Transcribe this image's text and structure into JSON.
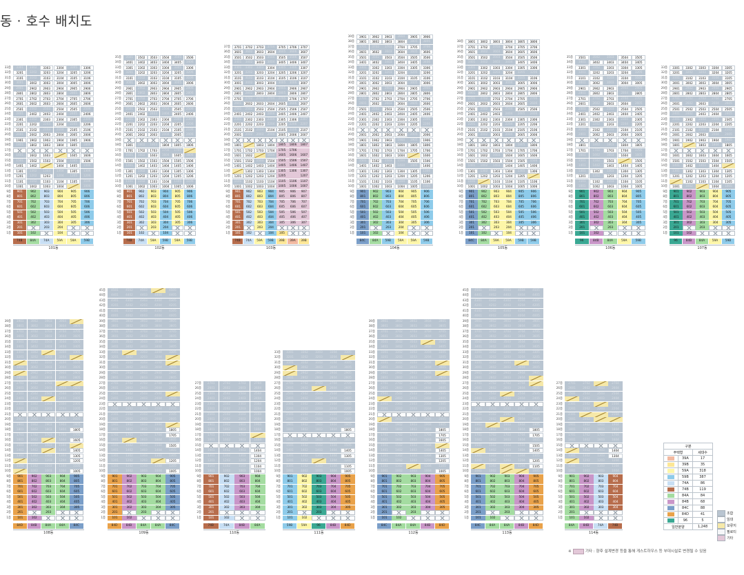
{
  "title": "동 · 호수 배치도",
  "colors": {
    "general": "#b9c5d1",
    "rental": "#ffffff",
    "pilotis": "#f6f7f9",
    "etc": "#e3c8d8",
    "types": {
      "39A": "#f2b9a1",
      "39B": "#fde796",
      "59A": "#fdf6a8",
      "59B": "#8ecbea",
      "74A": "#c8dff4",
      "74B": "#b76d4c",
      "84A": "#a4dca1",
      "84B": "#c996c8",
      "84C": "#7a9ec8",
      "84D": "#e9a24a",
      "96": "#3aa893"
    }
  },
  "buildings": [
    {
      "name": "101동",
      "floors": 33,
      "types": [
        "74B",
        "84A",
        "74A",
        "59A",
        "59A",
        "59B"
      ],
      "low_units": [
        1,
        2
      ]
    },
    {
      "name": "102동",
      "floors": 35,
      "types": [
        "74B",
        "74A",
        "59A",
        "59B",
        "59A",
        "59B"
      ],
      "low_units": [
        1,
        2
      ]
    },
    {
      "name": "103동",
      "floors": 37,
      "types": [
        "74B",
        "74A",
        "59A",
        "59B",
        "39B",
        "39A",
        "39B"
      ],
      "low_units": [
        1,
        2
      ]
    },
    {
      "name": "104동",
      "floors": 39,
      "types": [
        "84C",
        "84A",
        "59B",
        "59A",
        "59A",
        "59B"
      ],
      "low_units": [
        1,
        2
      ]
    },
    {
      "name": "105동",
      "floors": 38,
      "types": [
        "84C",
        "84A",
        "59A",
        "59A",
        "59B",
        "59B"
      ],
      "low_units": [
        1,
        2
      ]
    },
    {
      "name": "106동",
      "floors": 35,
      "types": [
        "96",
        "84B",
        "84A",
        "59A",
        "59B"
      ],
      "low_units": [
        1,
        2
      ]
    },
    {
      "name": "107동",
      "floors": 33,
      "types": [
        "96",
        "84B",
        "84A",
        "59A",
        "59B"
      ],
      "low_units": [
        1,
        2
      ]
    },
    {
      "name": "108동",
      "floors": 39,
      "types": [
        "84D",
        "84B",
        "84A",
        "84A",
        "84C"
      ],
      "low_units": [
        1,
        2
      ]
    },
    {
      "name": "109동",
      "floors": 45,
      "types": [
        "84D",
        "84B",
        "84A",
        "84A",
        "84C"
      ],
      "low_units": [
        1,
        2
      ]
    },
    {
      "name": "110동",
      "floors": 27,
      "types": [
        "74B",
        "74A",
        "84B",
        "84A"
      ],
      "low_units": [
        1,
        2
      ]
    },
    {
      "name": "111동",
      "floors": 33,
      "types": [
        "59B",
        "59A",
        "96",
        "84B",
        "84D"
      ],
      "low_units": [
        1,
        2
      ]
    },
    {
      "name": "112동",
      "floors": 39,
      "types": [
        "84C",
        "84A",
        "84A",
        "84B",
        "84D"
      ],
      "low_units": [
        1,
        2
      ]
    },
    {
      "name": "113동",
      "floors": 45,
      "types": [
        "84C",
        "84A",
        "84A",
        "84B",
        "84D"
      ],
      "low_units": [
        1,
        2
      ]
    },
    {
      "name": "114동",
      "floors": 27,
      "types": [
        "84A",
        "84B",
        "74A",
        "74B"
      ],
      "low_units": [
        1,
        2
      ]
    }
  ],
  "legend": {
    "header": "구분",
    "col_type": "주택형",
    "col_count": "세대수",
    "rows": [
      {
        "type": "39A",
        "count": "17"
      },
      {
        "type": "39B",
        "count": "35"
      },
      {
        "type": "59A",
        "count": "318"
      },
      {
        "type": "59B",
        "count": "387"
      },
      {
        "type": "74A",
        "count": "86"
      },
      {
        "type": "74B",
        "count": "119"
      },
      {
        "type": "84A",
        "count": "84"
      },
      {
        "type": "84B",
        "count": "68"
      },
      {
        "type": "84C",
        "count": "88"
      },
      {
        "type": "84D",
        "count": "41"
      },
      {
        "type": "96",
        "count": "5"
      }
    ],
    "total_label": "일반분양",
    "total_count": "1,248"
  },
  "legend2": [
    {
      "label": "조합",
      "color": "#b9c5d1"
    },
    {
      "label": "임대",
      "color": "#ffffff"
    },
    {
      "label": "보류지",
      "color": "#f6e9a9"
    },
    {
      "label": "필로티",
      "color": "#f6f7f9"
    },
    {
      "label": "기타",
      "color": "#e3c8d8"
    }
  ],
  "footnote_prefix": "※",
  "footnote": "기타 : 향후 설계변경 등을 통해 게스트하우스 등 부대시설로 변경될 수 있음"
}
